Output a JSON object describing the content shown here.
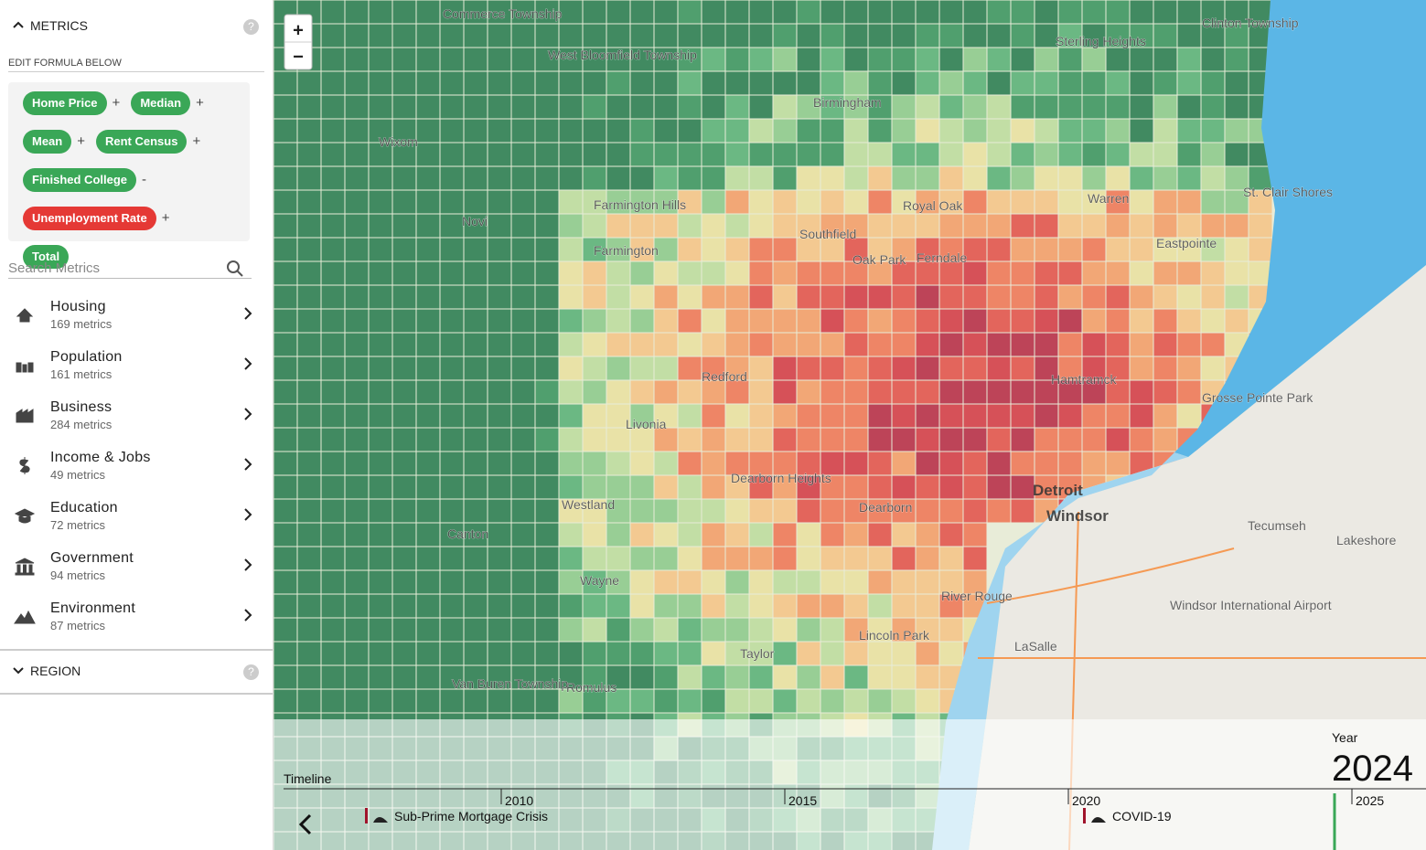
{
  "sidebar": {
    "metrics_header": "METRICS",
    "help": "?",
    "formula_label": "EDIT FORMULA BELOW",
    "formula": [
      {
        "label": "Home Price",
        "op": "+"
      },
      {
        "label": "Median",
        "op": "+"
      },
      {
        "label": "Mean",
        "op": "+"
      },
      {
        "label": "Rent Census",
        "op": "+"
      },
      {
        "label": "Finished College",
        "op": "-"
      },
      {
        "label": "Unemployment Rate",
        "op": "+"
      },
      {
        "label": "Total"
      }
    ],
    "search_placeholder": "Search Metrics",
    "categories": [
      {
        "name": "Housing",
        "count": "169 metrics"
      },
      {
        "name": "Population",
        "count": "161 metrics"
      },
      {
        "name": "Business",
        "count": "284 metrics"
      },
      {
        "name": "Income & Jobs",
        "count": "49 metrics"
      },
      {
        "name": "Education",
        "count": "72 metrics"
      },
      {
        "name": "Government",
        "count": "94 metrics"
      },
      {
        "name": "Environment",
        "count": "87 metrics"
      }
    ],
    "region_header": "REGION"
  },
  "map": {
    "zoom_in": "+",
    "zoom_out": "−",
    "places": [
      "Commerce Township",
      "West Bloomfield Township",
      "Sterling Heights",
      "Clinton Township",
      "Birmingham",
      "Wixom",
      "Farmington Hills",
      "Farmington",
      "Novi",
      "Royal Oak",
      "Warren",
      "St. Clair Shores",
      "Southfield",
      "Oak Park",
      "Ferndale",
      "Eastpointe",
      "Redford",
      "Hamtramck",
      "Livonia",
      "Grosse Pointe Park",
      "Dearborn Heights",
      "Westland",
      "Dearborn",
      "Detroit",
      "Windsor",
      "Canton",
      "Tecumseh",
      "Lakeshore",
      "Wayne",
      "River Rouge",
      "Windsor International Airport",
      "Lincoln Park",
      "Taylor",
      "LaSalle",
      "Romulus",
      "Van Buren Township"
    ]
  },
  "timeline": {
    "label": "Timeline",
    "year_label": "Year",
    "year": "2024",
    "ticks": [
      "2010",
      "2015",
      "2020",
      "2025"
    ],
    "events": [
      "Sub-Prime Mortgage Crisis",
      "COVID-19"
    ]
  }
}
